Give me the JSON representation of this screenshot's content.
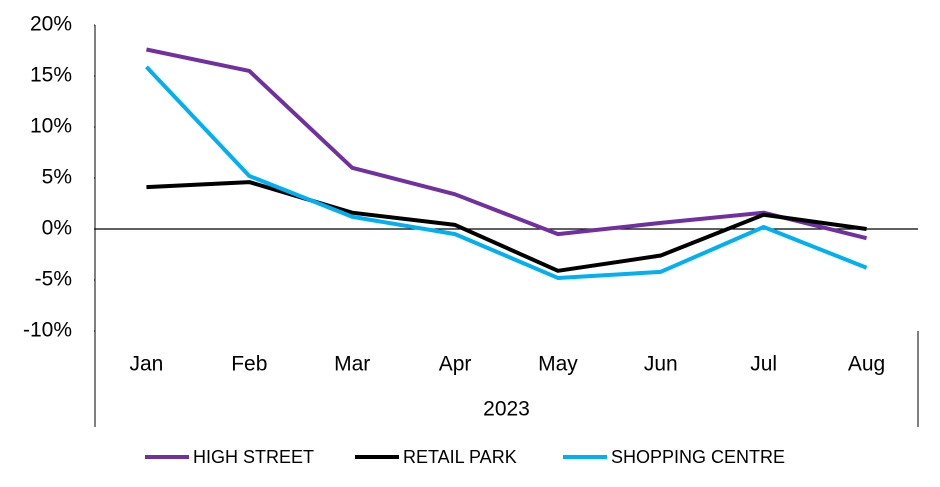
{
  "chart_data": {
    "type": "line",
    "categories": [
      "Jan",
      "Feb",
      "Mar",
      "Apr",
      "May",
      "Jun",
      "Jul",
      "Aug"
    ],
    "category_group": "2023",
    "series": [
      {
        "name": "HIGH STREET",
        "color": "#7030a0",
        "values": [
          17.6,
          15.5,
          6.0,
          3.4,
          -0.5,
          0.6,
          1.6,
          -0.9
        ]
      },
      {
        "name": "RETAIL PARK",
        "color": "#000000",
        "values": [
          4.1,
          4.6,
          1.6,
          0.4,
          -4.1,
          -2.6,
          1.4,
          0.0
        ]
      },
      {
        "name": "SHOPPING CENTRE",
        "color": "#00b0f0",
        "values": [
          15.9,
          5.2,
          1.2,
          -0.5,
          -4.8,
          -4.2,
          0.2,
          -3.8
        ]
      }
    ],
    "ylim": [
      -10,
      20
    ],
    "yticks": [
      {
        "value": 20,
        "label": "20%"
      },
      {
        "value": 15,
        "label": "15%"
      },
      {
        "value": 10,
        "label": "10%"
      },
      {
        "value": 5,
        "label": "5%"
      },
      {
        "value": 0,
        "label": "0%"
      },
      {
        "value": -5,
        "label": "-5%"
      },
      {
        "value": -10,
        "label": "-10%"
      }
    ],
    "grid": false,
    "legend": "bottom"
  }
}
